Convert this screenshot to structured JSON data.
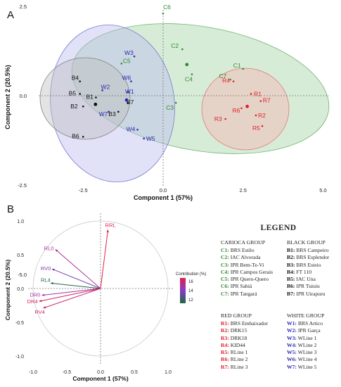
{
  "panels": {
    "a_label": "A",
    "b_label": "B"
  },
  "scatter": {
    "xlabel": "Component 1 (57%)",
    "ylabel": "Component 2 (20.5%)",
    "xticks": [
      "-2.5",
      "0.0",
      "2.5",
      "5.0"
    ],
    "yticks": [
      "2.5",
      "0.0",
      "-2.5",
      "-5.0"
    ],
    "groups": {
      "carioca": {
        "color": "#2f8a2f",
        "fill": "#9fd29f",
        "stroke": "#6db36d"
      },
      "black": {
        "color": "#111111",
        "fill": "#bdbdbd",
        "stroke": "#808080"
      },
      "red": {
        "color": "#e0202a",
        "fill": "#f7b0b0",
        "stroke": "#e07878"
      },
      "white": {
        "color": "#2a2ab0",
        "fill": "#b8b8ee",
        "stroke": "#7a7ad0"
      }
    },
    "points": [
      {
        "label": "C1",
        "group": "carioca",
        "x": 2.5,
        "y": 0.75
      },
      {
        "label": "C2",
        "group": "carioca",
        "x": 0.6,
        "y": 1.3
      },
      {
        "label": "C3",
        "group": "carioca",
        "x": 0.4,
        "y": -0.2
      },
      {
        "label": "C4",
        "group": "carioca",
        "x": 0.9,
        "y": 0.6
      },
      {
        "label": "C5",
        "group": "carioca",
        "x": -1.3,
        "y": 0.9
      },
      {
        "label": "C6",
        "group": "carioca",
        "x": 0.0,
        "y": 2.3
      },
      {
        "label": "C7",
        "group": "carioca",
        "x": 2.1,
        "y": 0.45
      },
      {
        "label": "B1",
        "group": "black",
        "x": -2.1,
        "y": -0.05
      },
      {
        "label": "B2",
        "group": "black",
        "x": -2.5,
        "y": -0.3
      },
      {
        "label": "B3",
        "group": "black",
        "x": -1.4,
        "y": -0.45
      },
      {
        "label": "B4",
        "group": "black",
        "x": -2.6,
        "y": 0.4
      },
      {
        "label": "B5",
        "group": "black",
        "x": -2.6,
        "y": 0.05
      },
      {
        "label": "B6",
        "group": "black",
        "x": -2.5,
        "y": -1.15
      },
      {
        "label": "B7",
        "group": "black",
        "x": -1.1,
        "y": -0.2
      },
      {
        "label": "R1",
        "group": "red",
        "x": 2.75,
        "y": 0.05
      },
      {
        "label": "R2",
        "group": "red",
        "x": 2.9,
        "y": -0.55
      },
      {
        "label": "R3",
        "group": "red",
        "x": 1.95,
        "y": -0.65
      },
      {
        "label": "R4",
        "group": "red",
        "x": 2.2,
        "y": 0.4
      },
      {
        "label": "R5",
        "group": "red",
        "x": 3.1,
        "y": -0.85
      },
      {
        "label": "R6",
        "group": "red",
        "x": 2.45,
        "y": -0.35
      },
      {
        "label": "R7",
        "group": "red",
        "x": 3.05,
        "y": -0.15
      },
      {
        "label": "W1",
        "group": "white",
        "x": -1.1,
        "y": 0.1
      },
      {
        "label": "W2",
        "group": "white",
        "x": -1.9,
        "y": 0.15
      },
      {
        "label": "W3",
        "group": "white",
        "x": -0.9,
        "y": 1.1
      },
      {
        "label": "W4",
        "group": "white",
        "x": -0.8,
        "y": -0.95
      },
      {
        "label": "W5",
        "group": "white",
        "x": -0.6,
        "y": -1.2
      },
      {
        "label": "W6",
        "group": "white",
        "x": -1.0,
        "y": 0.4
      },
      {
        "label": "W7",
        "group": "white",
        "x": -1.7,
        "y": -0.45
      }
    ]
  },
  "chart_data": [
    {
      "type": "scatter",
      "title": "",
      "xlabel": "Component 1 (57%)",
      "ylabel": "Component 2 (20.5%)",
      "xlim": [
        -3.7,
        5.3
      ],
      "ylim": [
        -5.4,
        3.5
      ],
      "grid": false,
      "series": [
        {
          "name": "CARIOCA GROUP",
          "x": [
            2.5,
            0.6,
            0.4,
            0.9,
            -1.3,
            0.0,
            2.1
          ],
          "y": [
            0.75,
            1.3,
            -0.2,
            0.6,
            0.9,
            2.3,
            0.45
          ],
          "labels": [
            "C1",
            "C2",
            "C3",
            "C4",
            "C5",
            "C6",
            "C7"
          ]
        },
        {
          "name": "BLACK GROUP",
          "x": [
            -2.1,
            -2.5,
            -1.4,
            -2.6,
            -2.6,
            -2.5,
            -1.1
          ],
          "y": [
            -0.05,
            -0.3,
            -0.45,
            0.4,
            0.05,
            -1.15,
            -0.2
          ],
          "labels": [
            "B1",
            "B2",
            "B3",
            "B4",
            "B5",
            "B6",
            "B7"
          ]
        },
        {
          "name": "RED GROUP",
          "x": [
            2.75,
            2.9,
            1.95,
            2.2,
            3.1,
            2.45,
            3.05
          ],
          "y": [
            0.05,
            -0.55,
            -0.65,
            0.4,
            -0.85,
            -0.35,
            -0.15
          ],
          "labels": [
            "R1",
            "R2",
            "R3",
            "R4",
            "R5",
            "R6",
            "R7"
          ]
        },
        {
          "name": "WHITE GROUP",
          "x": [
            -1.1,
            -1.9,
            -0.9,
            -0.8,
            -0.6,
            -1.0,
            -1.7
          ],
          "y": [
            0.1,
            0.15,
            1.1,
            -0.95,
            -1.2,
            0.4,
            -0.45
          ],
          "labels": [
            "W1",
            "W2",
            "W3",
            "W4",
            "W5",
            "W6",
            "W7"
          ]
        }
      ]
    },
    {
      "type": "scatter",
      "title": "",
      "xlabel": "Component 1 (57%)",
      "ylabel": "Component 2 (20.5%)",
      "xlim": [
        -1.1,
        1.1
      ],
      "ylim": [
        -1.1,
        1.1
      ],
      "xticks": [
        "-1.0",
        "-0.5",
        "0.0",
        "0.5",
        "1.0"
      ],
      "yticks": [
        "1.0",
        "0.5",
        "0.0",
        "-0.5",
        "-1.0"
      ],
      "legend_title": "Contribution (%)",
      "legend_ticks": [
        "16",
        "14",
        "12"
      ],
      "vectors": [
        {
          "name": "RRL",
          "x": 0.11,
          "y": 0.87,
          "contribution": 16.5
        },
        {
          "name": "RL0",
          "x": -0.67,
          "y": 0.58,
          "contribution": 14.8
        },
        {
          "name": "RV0",
          "x": -0.72,
          "y": 0.29,
          "contribution": 13.0
        },
        {
          "name": "RL4",
          "x": -0.74,
          "y": 0.08,
          "contribution": 11.4
        },
        {
          "name": "DR0",
          "x": -0.87,
          "y": -0.1,
          "contribution": 14.3
        },
        {
          "name": "DR4",
          "x": -0.91,
          "y": -0.19,
          "contribution": 16.2
        },
        {
          "name": "RV4",
          "x": -0.85,
          "y": -0.29,
          "contribution": 15.6
        }
      ]
    }
  ],
  "legend": {
    "title": "LEGEND",
    "carioca": {
      "title": "CARIOCA GROUP",
      "items": [
        {
          "code": "C1:",
          "name": "BRS Estilo"
        },
        {
          "code": "C2:",
          "name": "IAC Alvorada"
        },
        {
          "code": "C3:",
          "name": "IPR Bem-Te-Vi"
        },
        {
          "code": "C4:",
          "name": "IPR Campos Gerais"
        },
        {
          "code": "C5:",
          "name": "IPR Quero-Quero"
        },
        {
          "code": "C6:",
          "name": "IPR Sabiá"
        },
        {
          "code": "C7:",
          "name": "IPR Tangará"
        }
      ]
    },
    "black": {
      "title": "BLACK GROUP",
      "items": [
        {
          "code": "B1:",
          "name": "BRS Campeiro"
        },
        {
          "code": "B2:",
          "name": "BRS Esplendor"
        },
        {
          "code": "B3:",
          "name": "BRS Esteio"
        },
        {
          "code": "B4:",
          "name": "FT 110"
        },
        {
          "code": "B5:",
          "name": "IAC Una"
        },
        {
          "code": "B6:",
          "name": "IPR Tuiuiu"
        },
        {
          "code": "B7:",
          "name": "IPR Uirapuru"
        }
      ]
    },
    "red": {
      "title": "RED GROUP",
      "items": [
        {
          "code": "R1:",
          "name": "BRS Embaixador"
        },
        {
          "code": "R2:",
          "name": "DRK15"
        },
        {
          "code": "R3:",
          "name": "DRK18"
        },
        {
          "code": "R4:",
          "name": "KID44"
        },
        {
          "code": "R5:",
          "name": "RLine 1"
        },
        {
          "code": "R6:",
          "name": "RLine 2"
        },
        {
          "code": "R7:",
          "name": "RLine 3"
        }
      ]
    },
    "white": {
      "title": "WHITE GROUP",
      "items": [
        {
          "code": "W1:",
          "name": "BRS Artico"
        },
        {
          "code": "W2:",
          "name": "IPR Garça"
        },
        {
          "code": "W3:",
          "name": "WLine 1"
        },
        {
          "code": "W4:",
          "name": "WLine 2"
        },
        {
          "code": "W5:",
          "name": "WLine 3"
        },
        {
          "code": "W6:",
          "name": "WLine 4"
        },
        {
          "code": "W7:",
          "name": "WLine 5"
        }
      ]
    }
  }
}
